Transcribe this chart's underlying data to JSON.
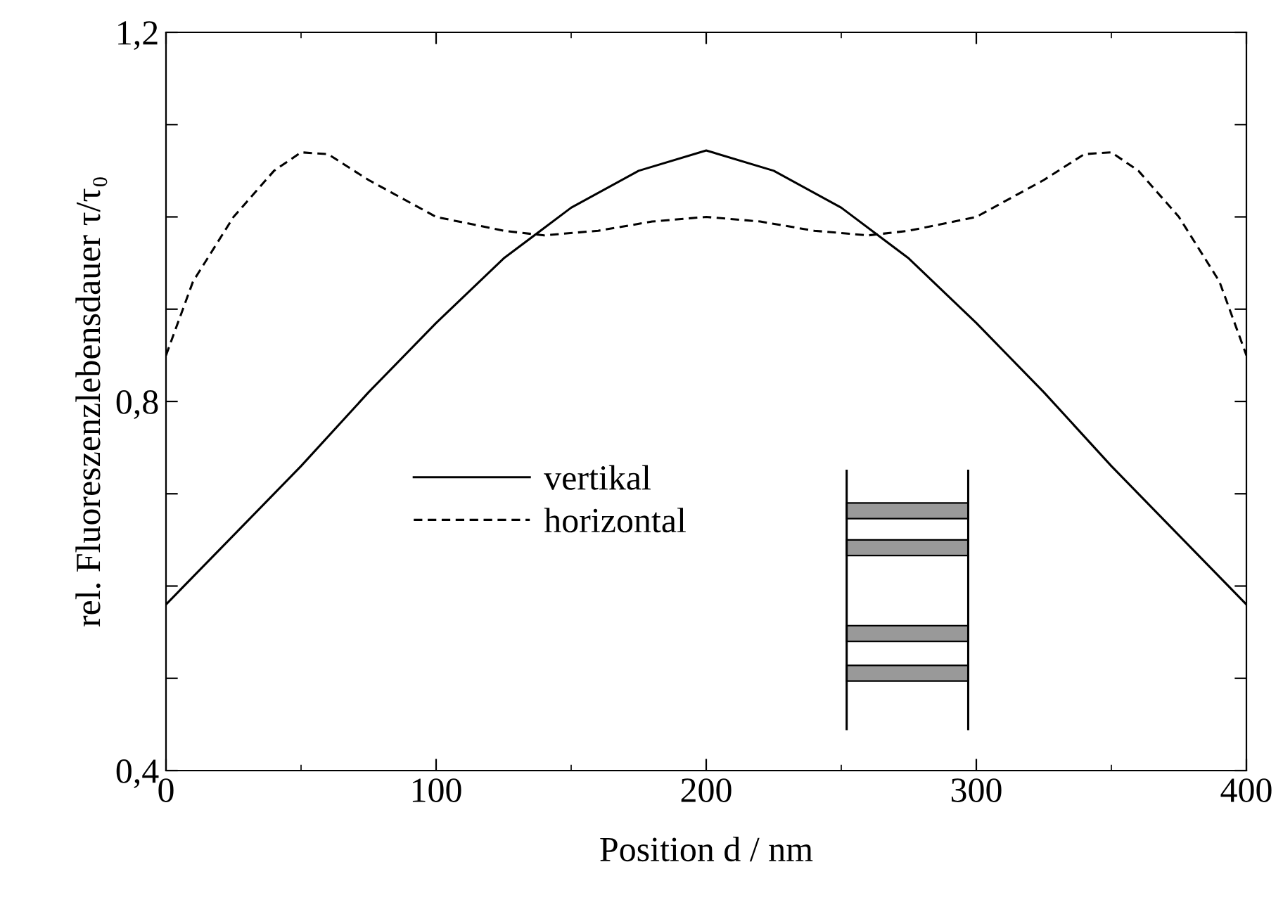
{
  "chart_data": {
    "type": "line",
    "xlabel": "Position d / nm",
    "ylabel": "rel. Fluoreszenzlebensdauer τ/τ₀",
    "xlim": [
      0,
      400
    ],
    "ylim": [
      0.4,
      1.2
    ],
    "xticks": [
      0,
      100,
      200,
      300,
      400
    ],
    "yticks": [
      {
        "value": 0.4,
        "label": "0,4"
      },
      {
        "value": 0.5,
        "label": null
      },
      {
        "value": 0.6,
        "label": null
      },
      {
        "value": 0.7,
        "label": null
      },
      {
        "value": 0.8,
        "label": "0,8"
      },
      {
        "value": 0.9,
        "label": null
      },
      {
        "value": 1.0,
        "label": null
      },
      {
        "value": 1.1,
        "label": null
      },
      {
        "value": 1.2,
        "label": "1,2"
      }
    ],
    "legend": "bottom left",
    "grid": false,
    "marker": "none",
    "series": [
      {
        "name": "vertikal",
        "color": "#000000",
        "line_style": "solid",
        "x": [
          0,
          25,
          50,
          75,
          100,
          125,
          150,
          175,
          200,
          225,
          250,
          275,
          300,
          325,
          350,
          375,
          400
        ],
        "values": [
          0.58,
          0.655,
          0.73,
          0.81,
          0.885,
          0.955,
          1.01,
          1.05,
          1.072,
          1.05,
          1.01,
          0.955,
          0.885,
          0.81,
          0.73,
          0.655,
          0.58
        ]
      },
      {
        "name": "horizontal",
        "color": "#000000",
        "line_style": "dashed",
        "x": [
          0,
          10,
          25,
          40,
          50,
          60,
          75,
          100,
          125,
          140,
          160,
          180,
          200,
          220,
          240,
          260,
          275,
          300,
          325,
          340,
          350,
          360,
          375,
          390,
          400
        ],
        "values": [
          0.85,
          0.93,
          1.0,
          1.05,
          1.07,
          1.068,
          1.04,
          1.0,
          0.985,
          0.98,
          0.985,
          0.995,
          1.0,
          0.995,
          0.985,
          0.98,
          0.985,
          1.0,
          1.04,
          1.068,
          1.07,
          1.05,
          1.0,
          0.93,
          0.85
        ]
      }
    ]
  }
}
